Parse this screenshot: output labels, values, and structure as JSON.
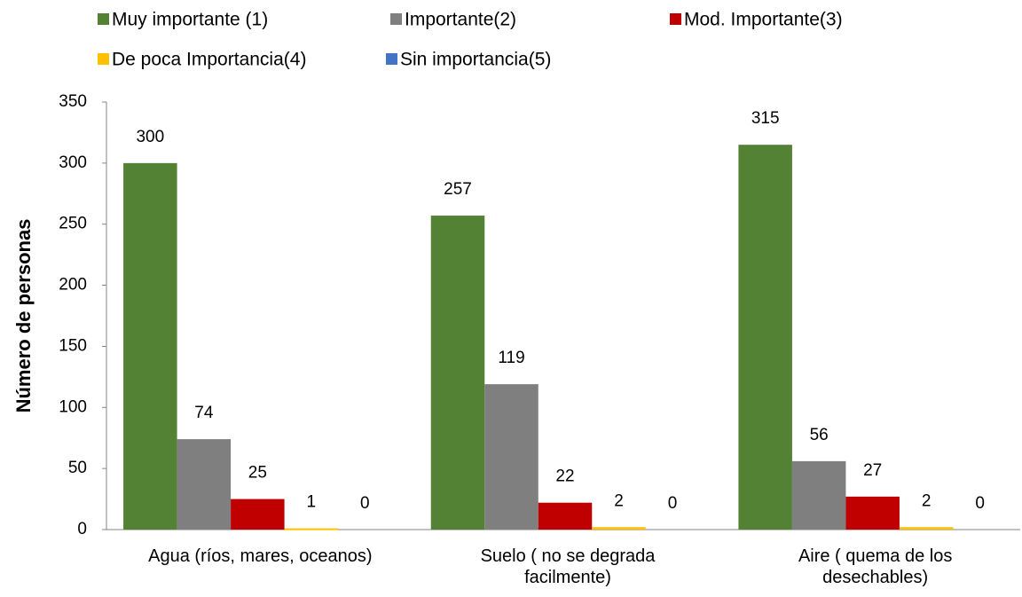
{
  "chart_data": {
    "type": "bar",
    "y_label": "Número de personas",
    "categories": [
      "Agua (ríos, mares, oceanos)",
      "Suelo ( no se degrada facilmente)",
      "Aire ( quema de los desechables)"
    ],
    "series": [
      {
        "name": "Muy importante (1)",
        "color": "#548235",
        "values": [
          300,
          257,
          315
        ]
      },
      {
        "name": "Importante(2)",
        "color": "#7f7f7f",
        "values": [
          74,
          119,
          56
        ]
      },
      {
        "name": "Mod. Importante(3)",
        "color": "#c00000",
        "values": [
          25,
          22,
          27
        ]
      },
      {
        "name": "De poca Importancia(4)",
        "color": "#ffc000",
        "values": [
          1,
          2,
          2
        ]
      },
      {
        "name": "Sin importancia(5)",
        "color": "#4472c4",
        "values": [
          0,
          0,
          0
        ]
      }
    ],
    "ylim": [
      0,
      350
    ],
    "yticks": [
      0,
      50,
      100,
      150,
      200,
      250,
      300,
      350
    ],
    "legend": "top"
  }
}
